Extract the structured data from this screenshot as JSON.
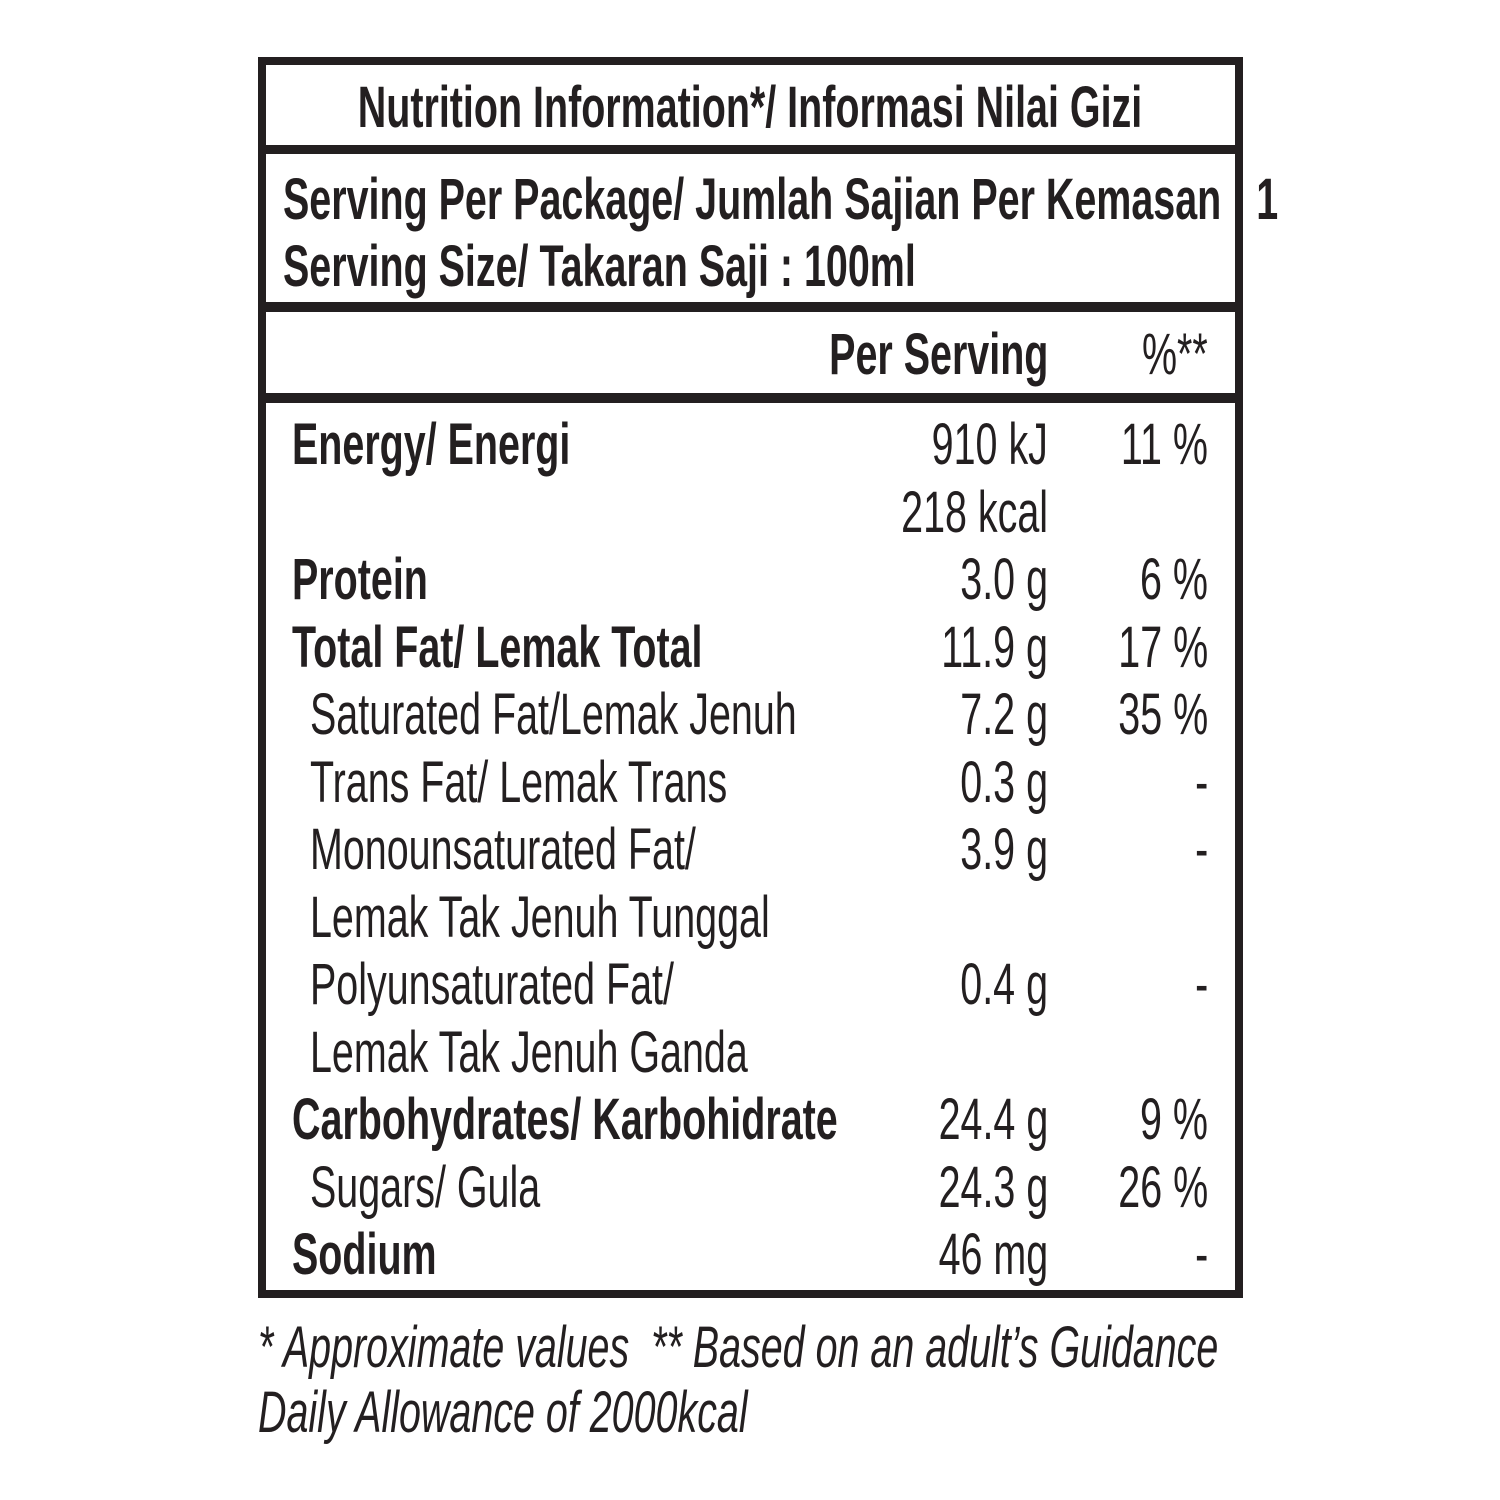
{
  "header": {
    "title": "Nutrition Information*/ Informasi Nilai Gizi"
  },
  "serving": {
    "lines": [
      "Serving Per Package/ Jumlah Sajian Per Kemasan : 1",
      "Serving Size/ Takaran Saji : 100ml"
    ]
  },
  "table": {
    "columns": [
      "Per Serving",
      "%**"
    ],
    "rows": [
      {
        "label": [
          "Energy/ Energi"
        ],
        "amount": [
          "910 kJ",
          "218 kcal"
        ],
        "percent": "11 %",
        "bold": true
      },
      {
        "label": [
          "Protein"
        ],
        "amount": [
          "3.0 g"
        ],
        "percent": "6 %",
        "bold": true
      },
      {
        "label": [
          "Total Fat/ Lemak Total"
        ],
        "amount": [
          "11.9 g"
        ],
        "percent": "17 %",
        "bold": true
      },
      {
        "label": [
          "Saturated Fat/Lemak Jenuh"
        ],
        "amount": [
          "7.2 g"
        ],
        "percent": "35 %",
        "bold": false
      },
      {
        "label": [
          "Trans Fat/ Lemak Trans"
        ],
        "amount": [
          "0.3 g"
        ],
        "percent": "-",
        "bold": false
      },
      {
        "label": [
          "Monounsaturated Fat/",
          "Lemak Tak Jenuh Tunggal"
        ],
        "amount": [
          "3.9 g"
        ],
        "percent": "-",
        "bold": false
      },
      {
        "label": [
          "Polyunsaturated Fat/",
          "Lemak Tak Jenuh Ganda"
        ],
        "amount": [
          "0.4 g"
        ],
        "percent": "-",
        "bold": false
      },
      {
        "label": [
          "Carbohydrates/ Karbohidrate"
        ],
        "amount": [
          "24.4 g"
        ],
        "percent": "9 %",
        "bold": true
      },
      {
        "label": [
          "Sugars/ Gula"
        ],
        "amount": [
          "24.3 g"
        ],
        "percent": "26 %",
        "bold": false
      },
      {
        "label": [
          "Sodium"
        ],
        "amount": [
          "46 mg"
        ],
        "percent": "-",
        "bold": true
      }
    ]
  },
  "footnote": [
    "* Approximate values  ** Based on an adult’s Guidance",
    "Daily Allowance of 2000kcal"
  ]
}
